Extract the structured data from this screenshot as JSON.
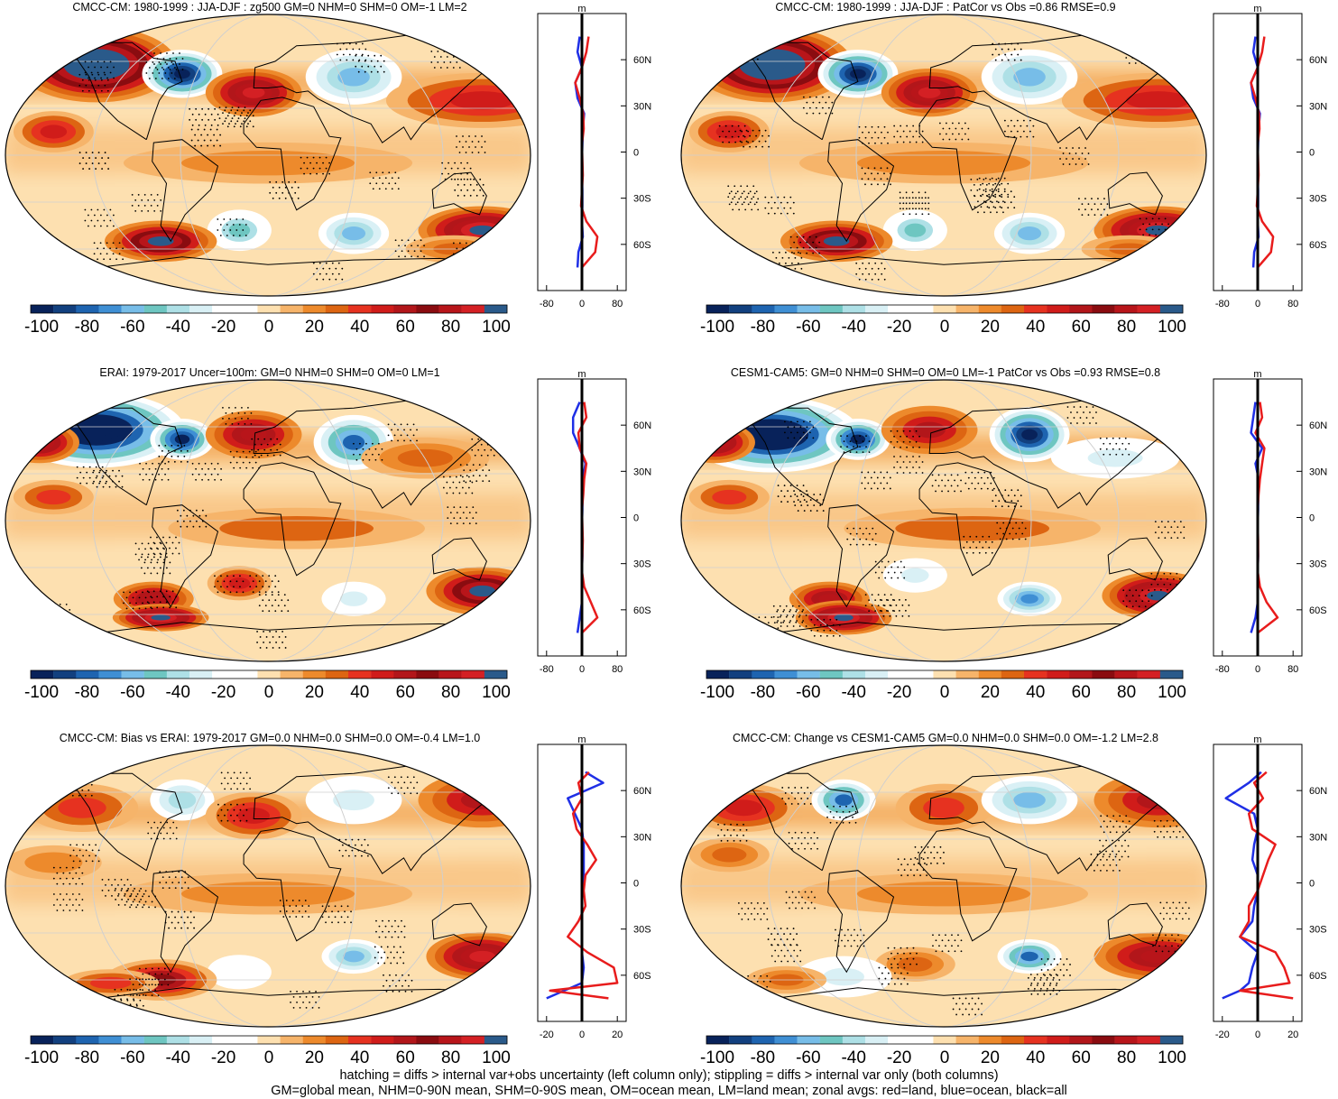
{
  "figure": {
    "colorbar_labels": [
      "-100",
      "-80",
      "-60",
      "-40",
      "-20",
      "0",
      "20",
      "40",
      "60",
      "80",
      "100"
    ],
    "colorbar_colors": [
      "#08225a",
      "#12407f",
      "#1e64b0",
      "#3f8fd4",
      "#77bde8",
      "#6ec6c1",
      "#aee0e6",
      "#d9f0f5",
      "#ffffff",
      "#ffffff",
      "#fde0b0",
      "#f6b46a",
      "#ed8a2c",
      "#dd6512",
      "#e63220",
      "#d01c1a",
      "#b2161a",
      "#8a0c10",
      "#b8151a",
      "#d42024",
      "#2a5a8a"
    ],
    "lat_labels": [
      "60N",
      "30N",
      "0",
      "30S",
      "60S"
    ],
    "lat_values": [
      60,
      30,
      0,
      -30,
      -60
    ],
    "unit_label": "m",
    "footnote_line1": "hatching = diffs > internal var+obs uncertainty (left column only); stippling = diffs > internal var only (both columns)",
    "footnote_line2": "GM=global mean, NHM=0-90N mean, SHM=0-90S mean, OM=ocean mean, LM=land mean; zonal avgs: red=land, blue=ocean, black=all"
  },
  "chart_data": [
    {
      "type": "heatmap",
      "title": "CMCC-CM: 1980-1999 : JJA-DJF : zg500 GM=0 NHM=0 SHM=0 OM=-1 LM=2",
      "colorbar": {
        "min": -100,
        "max": 100,
        "ticks": [
          -100,
          -80,
          -60,
          -40,
          -20,
          0,
          20,
          40,
          60,
          80,
          100
        ]
      },
      "blobs": [
        [
          -120,
          58,
          50,
          22,
          130
        ],
        [
          -60,
          52,
          25,
          14,
          -110
        ],
        [
          -10,
          40,
          30,
          14,
          90
        ],
        [
          60,
          50,
          30,
          16,
          -60
        ],
        [
          150,
          35,
          60,
          16,
          50
        ],
        [
          -150,
          15,
          25,
          12,
          50
        ],
        [
          0,
          -5,
          90,
          12,
          20
        ],
        [
          150,
          -48,
          40,
          14,
          110
        ],
        [
          60,
          -50,
          22,
          12,
          -60
        ],
        [
          -20,
          -48,
          20,
          12,
          -50
        ],
        [
          -75,
          -55,
          35,
          12,
          100
        ],
        [
          130,
          -60,
          30,
          8,
          30
        ]
      ],
      "zonal": {
        "x_ticks": [
          -80,
          0,
          80
        ],
        "x_range": [
          -100,
          100
        ],
        "lat": [
          -75,
          -65,
          -55,
          -45,
          -35,
          -25,
          -15,
          -5,
          5,
          15,
          25,
          35,
          45,
          55,
          65,
          75
        ],
        "land": [
          0,
          30,
          35,
          10,
          -2,
          0,
          2,
          1,
          0,
          4,
          3,
          -5,
          -15,
          0,
          10,
          15
        ],
        "ocean": [
          -10,
          -8,
          2,
          0,
          1,
          1,
          0,
          0,
          1,
          2,
          5,
          -10,
          -15,
          0,
          -10,
          -5
        ]
      }
    },
    {
      "type": "heatmap",
      "title": "CMCC-CM: 1980-1999 : JJA-DJF : PatCor vs Obs =0.86 RMSE=0.9",
      "colorbar": {
        "min": -100,
        "max": 100,
        "ticks": [
          -100,
          -80,
          -60,
          -40,
          -20,
          0,
          20,
          40,
          60,
          80,
          100
        ]
      },
      "blobs": [
        [
          -120,
          58,
          50,
          22,
          130
        ],
        [
          -60,
          52,
          25,
          14,
          -110
        ],
        [
          -10,
          40,
          30,
          14,
          90
        ],
        [
          60,
          50,
          30,
          16,
          -60
        ],
        [
          150,
          35,
          60,
          16,
          50
        ],
        [
          -150,
          15,
          25,
          12,
          50
        ],
        [
          0,
          -5,
          90,
          12,
          20
        ],
        [
          150,
          -48,
          40,
          14,
          110
        ],
        [
          60,
          -50,
          22,
          12,
          -60
        ],
        [
          -20,
          -48,
          20,
          12,
          -50
        ],
        [
          -75,
          -55,
          35,
          12,
          100
        ],
        [
          130,
          -60,
          30,
          8,
          30
        ]
      ],
      "zonal": {
        "x_ticks": [
          -80,
          0,
          80
        ],
        "x_range": [
          -100,
          100
        ],
        "lat": [
          -75,
          -65,
          -55,
          -45,
          -35,
          -25,
          -15,
          -5,
          5,
          15,
          25,
          35,
          45,
          55,
          65,
          75
        ],
        "land": [
          0,
          30,
          35,
          10,
          -2,
          0,
          2,
          1,
          0,
          4,
          3,
          -5,
          -15,
          0,
          10,
          15
        ],
        "ocean": [
          -10,
          -8,
          2,
          0,
          1,
          1,
          0,
          0,
          1,
          2,
          5,
          -10,
          -15,
          0,
          -10,
          -5
        ]
      }
    },
    {
      "type": "heatmap",
      "title": "ERAI: 1979-2017 Uncer=100m: GM=0 NHM=0 SHM=0 OM=0 LM=1",
      "colorbar": {
        "min": -100,
        "max": 100,
        "ticks": [
          -100,
          -80,
          -60,
          -40,
          -20,
          0,
          20,
          40,
          60,
          80,
          100
        ]
      },
      "blobs": [
        [
          -120,
          58,
          55,
          22,
          -130
        ],
        [
          -160,
          50,
          25,
          12,
          90
        ],
        [
          -60,
          52,
          20,
          12,
          -100
        ],
        [
          -10,
          55,
          30,
          14,
          80
        ],
        [
          60,
          50,
          25,
          16,
          -80
        ],
        [
          110,
          40,
          40,
          12,
          30
        ],
        [
          -150,
          15,
          25,
          10,
          40
        ],
        [
          20,
          -5,
          80,
          12,
          25
        ],
        [
          150,
          -45,
          35,
          14,
          100
        ],
        [
          60,
          -50,
          20,
          10,
          -30
        ],
        [
          -80,
          -50,
          25,
          10,
          80
        ],
        [
          -75,
          -62,
          30,
          8,
          110
        ],
        [
          -20,
          -40,
          20,
          10,
          50
        ]
      ],
      "zonal": {
        "x_ticks": [
          -80,
          0,
          80
        ],
        "x_range": [
          -100,
          100
        ],
        "lat": [
          -75,
          -65,
          -55,
          -45,
          -35,
          -25,
          -15,
          -5,
          5,
          15,
          25,
          35,
          45,
          55,
          65,
          75
        ],
        "land": [
          0,
          35,
          20,
          5,
          0,
          1,
          2,
          1,
          0,
          3,
          5,
          10,
          -5,
          -8,
          10,
          5
        ],
        "ocean": [
          -10,
          -5,
          0,
          0,
          0,
          1,
          0,
          0,
          1,
          1,
          2,
          8,
          -5,
          -20,
          -20,
          -5
        ]
      }
    },
    {
      "type": "heatmap",
      "title": "CESM1-CAM5: GM=0 NHM=0 SHM=0 OM=0 LM=-1 PatCor vs Obs =0.93 RMSE=0.8",
      "colorbar": {
        "min": -100,
        "max": 100,
        "ticks": [
          -100,
          -80,
          -60,
          -40,
          -20,
          0,
          20,
          40,
          60,
          80,
          100
        ]
      },
      "blobs": [
        [
          -120,
          55,
          55,
          22,
          -130
        ],
        [
          -160,
          50,
          25,
          12,
          90
        ],
        [
          -60,
          52,
          20,
          12,
          -100
        ],
        [
          -10,
          58,
          30,
          14,
          60
        ],
        [
          60,
          55,
          25,
          16,
          -110
        ],
        [
          120,
          40,
          40,
          12,
          -30
        ],
        [
          -150,
          15,
          25,
          10,
          40
        ],
        [
          20,
          -5,
          80,
          12,
          25
        ],
        [
          150,
          -48,
          35,
          14,
          110
        ],
        [
          60,
          -50,
          20,
          10,
          -70
        ],
        [
          -80,
          -50,
          25,
          10,
          80
        ],
        [
          -70,
          -62,
          30,
          10,
          110
        ],
        [
          -20,
          -35,
          20,
          10,
          -30
        ]
      ],
      "zonal": {
        "x_ticks": [
          -80,
          0,
          80
        ],
        "x_range": [
          -100,
          100
        ],
        "lat": [
          -75,
          -65,
          -55,
          -45,
          -35,
          -25,
          -15,
          -5,
          5,
          15,
          25,
          35,
          45,
          55,
          65,
          75
        ],
        "land": [
          0,
          45,
          20,
          5,
          0,
          1,
          1,
          0,
          0,
          2,
          5,
          10,
          15,
          -5,
          10,
          5
        ],
        "ocean": [
          -15,
          -5,
          0,
          0,
          0,
          1,
          0,
          0,
          1,
          1,
          2,
          -5,
          10,
          -15,
          -10,
          -5
        ]
      }
    },
    {
      "type": "heatmap",
      "title": "CMCC-CM: Bias vs ERAI: 1979-2017 GM=0.0 NHM=0.0 SHM=0.0 OM=-0.4 LM=1.0",
      "colorbar": {
        "min": -100,
        "max": 100,
        "ticks": [
          -100,
          -80,
          -60,
          -40,
          -20,
          0,
          20,
          40,
          60,
          80,
          100
        ]
      },
      "blobs": [
        [
          -130,
          50,
          35,
          14,
          40
        ],
        [
          -60,
          55,
          20,
          12,
          -40
        ],
        [
          -10,
          45,
          30,
          14,
          50
        ],
        [
          60,
          55,
          30,
          14,
          -30
        ],
        [
          150,
          55,
          40,
          16,
          60
        ],
        [
          -150,
          15,
          30,
          10,
          20
        ],
        [
          0,
          -5,
          90,
          12,
          20
        ],
        [
          150,
          -45,
          35,
          14,
          90
        ],
        [
          60,
          -45,
          20,
          10,
          -60
        ],
        [
          -20,
          -55,
          20,
          10,
          -20
        ],
        [
          -75,
          -60,
          35,
          12,
          70
        ],
        [
          -110,
          -62,
          30,
          8,
          40
        ]
      ],
      "zonal": {
        "x_ticks": [
          -20,
          0,
          20
        ],
        "x_range": [
          -25,
          25
        ],
        "lat": [
          -75,
          -70,
          -65,
          -55,
          -45,
          -35,
          -25,
          -15,
          -5,
          5,
          15,
          25,
          35,
          45,
          55,
          65,
          72
        ],
        "land": [
          15,
          -18,
          20,
          18,
          3,
          -8,
          -2,
          2,
          1,
          2,
          8,
          3,
          -3,
          -5,
          0,
          -2,
          4
        ],
        "ocean": [
          -20,
          -10,
          0,
          1,
          0,
          0,
          0,
          0,
          0,
          1,
          1,
          1,
          0,
          -4,
          -8,
          12,
          2
        ]
      }
    },
    {
      "type": "heatmap",
      "title": "CMCC-CM: Change vs CESM1-CAM5 GM=0.0 NHM=0.0 SHM=0.0 OM=-1.2 LM=2.8",
      "colorbar": {
        "min": -100,
        "max": 100,
        "ticks": [
          -100,
          -80,
          -60,
          -40,
          -20,
          0,
          20,
          40,
          60,
          80,
          100
        ]
      },
      "blobs": [
        [
          -140,
          50,
          35,
          14,
          50
        ],
        [
          -70,
          55,
          20,
          12,
          -80
        ],
        [
          0,
          50,
          30,
          14,
          40
        ],
        [
          60,
          55,
          30,
          14,
          -60
        ],
        [
          150,
          55,
          40,
          16,
          60
        ],
        [
          -150,
          20,
          25,
          10,
          30
        ],
        [
          0,
          -5,
          90,
          12,
          20
        ],
        [
          150,
          -45,
          40,
          14,
          80
        ],
        [
          60,
          -45,
          20,
          10,
          -80
        ],
        [
          -20,
          -50,
          25,
          10,
          30
        ],
        [
          -70,
          -58,
          30,
          12,
          -30
        ],
        [
          -110,
          -60,
          25,
          8,
          30
        ]
      ],
      "zonal": {
        "x_ticks": [
          -20,
          0,
          20
        ],
        "x_range": [
          -25,
          25
        ],
        "lat": [
          -75,
          -70,
          -65,
          -55,
          -45,
          -35,
          -25,
          -15,
          -5,
          5,
          15,
          25,
          35,
          45,
          55,
          65,
          72
        ],
        "land": [
          20,
          -10,
          18,
          15,
          10,
          -10,
          -5,
          -5,
          0,
          3,
          6,
          10,
          -3,
          -5,
          3,
          -2,
          5
        ],
        "ocean": [
          -20,
          -10,
          -5,
          -3,
          0,
          -10,
          -3,
          -2,
          0,
          0,
          -3,
          -2,
          0,
          -2,
          -18,
          -5,
          2
        ]
      }
    }
  ]
}
